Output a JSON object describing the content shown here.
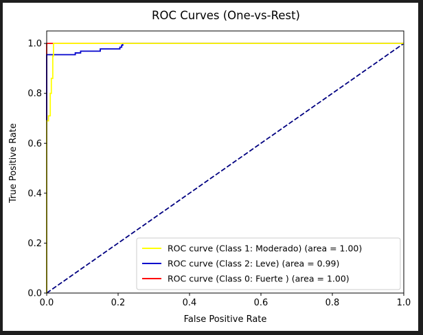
{
  "chart_data": {
    "type": "line",
    "title": "ROC Curves (One-vs-Rest)",
    "xlabel": "False Positive Rate",
    "ylabel": "True Positive Rate",
    "xlim": [
      0.0,
      1.0
    ],
    "ylim": [
      0.0,
      1.05
    ],
    "xticks": [
      "0.0",
      "0.2",
      "0.4",
      "0.6",
      "0.8",
      "1.0"
    ],
    "yticks": [
      "0.0",
      "0.2",
      "0.4",
      "0.6",
      "0.8",
      "1.0"
    ],
    "grid": false,
    "legend_position": "lower right",
    "series": [
      {
        "name": "ROC curve (Class 1: Moderado) (area = 1.00)",
        "color": "#ffff00",
        "style": "solid",
        "points": [
          [
            0,
            0
          ],
          [
            0,
            0.69
          ],
          [
            0.005,
            0.69
          ],
          [
            0.005,
            0.71
          ],
          [
            0.01,
            0.71
          ],
          [
            0.01,
            0.8
          ],
          [
            0.013,
            0.8
          ],
          [
            0.013,
            0.86
          ],
          [
            0.017,
            0.86
          ],
          [
            0.017,
            0.95
          ],
          [
            0.019,
            0.95
          ],
          [
            0.019,
            1.0
          ],
          [
            1,
            1
          ]
        ]
      },
      {
        "name": "ROC curve (Class 2: Leve) (area = 0.99)",
        "color": "#0000cc",
        "style": "solid",
        "points": [
          [
            0,
            0
          ],
          [
            0,
            0.955
          ],
          [
            0.08,
            0.955
          ],
          [
            0.08,
            0.962
          ],
          [
            0.095,
            0.962
          ],
          [
            0.095,
            0.969
          ],
          [
            0.15,
            0.969
          ],
          [
            0.15,
            0.978
          ],
          [
            0.205,
            0.978
          ],
          [
            0.205,
            0.985
          ],
          [
            0.21,
            0.985
          ],
          [
            0.21,
            0.993
          ],
          [
            0.213,
            0.993
          ],
          [
            0.213,
            1.0
          ],
          [
            1,
            1
          ]
        ]
      },
      {
        "name": "ROC curve (Class 0: Fuerte ) (area = 1.00)",
        "color": "#ff0000",
        "style": "solid",
        "points": [
          [
            0,
            0
          ],
          [
            0,
            1.0
          ],
          [
            1,
            1.0
          ]
        ]
      },
      {
        "name": "",
        "color": "#000080",
        "style": "dashed",
        "points": [
          [
            0,
            0
          ],
          [
            1,
            1
          ]
        ]
      }
    ]
  }
}
